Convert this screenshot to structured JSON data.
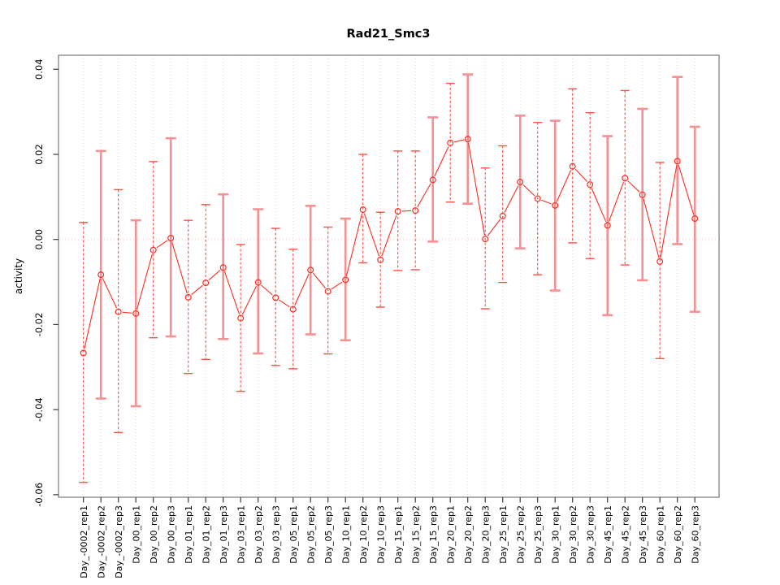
{
  "title": "Rad21_Smc3",
  "chart_data": {
    "type": "line",
    "subtype": "points-with-error-bars",
    "title": "Rad21_Smc3",
    "xlabel": "",
    "ylabel": "activity",
    "ylim": [
      -0.0606,
      0.0433
    ],
    "yticks": [
      0.04,
      0.02,
      0.0,
      -0.02,
      -0.04,
      -0.06
    ],
    "ytick_labels": [
      "0.04",
      "0.02",
      "0.00",
      "-0.02",
      "-0.04",
      "-0.06"
    ],
    "grid": "vertical dotted gridline per category; dotted horizontal line at y=0",
    "legend": "none",
    "marker": "open-circle",
    "categories": [
      "Day_-0002_rep1",
      "Day_-0002_rep2",
      "Day_-0002_rep3",
      "Day_00_rep1",
      "Day_00_rep2",
      "Day_00_rep3",
      "Day_01_rep1",
      "Day_01_rep2",
      "Day_01_rep3",
      "Day_03_rep1",
      "Day_03_rep2",
      "Day_03_rep3",
      "Day_05_rep1",
      "Day_05_rep2",
      "Day_05_rep3",
      "Day_10_rep1",
      "Day_10_rep2",
      "Day_10_rep3",
      "Day_15_rep1",
      "Day_15_rep2",
      "Day_15_rep3",
      "Day_20_rep1",
      "Day_20_rep2",
      "Day_20_rep3",
      "Day_25_rep1",
      "Day_25_rep2",
      "Day_25_rep3",
      "Day_30_rep1",
      "Day_30_rep2",
      "Day_30_rep3",
      "Day_45_rep1",
      "Day_45_rep2",
      "Day_45_rep3",
      "Day_60_rep1",
      "Day_60_rep2",
      "Day_60_rep3"
    ],
    "series": [
      {
        "name": "activity",
        "values": [
          -0.0267,
          -0.0083,
          -0.017,
          -0.0174,
          -0.0025,
          0.0003,
          -0.0136,
          -0.0102,
          -0.0066,
          -0.0185,
          -0.0101,
          -0.0137,
          -0.0164,
          -0.0072,
          -0.0122,
          -0.0095,
          0.007,
          -0.0048,
          0.0066,
          0.0068,
          0.014,
          0.0227,
          0.0236,
          0.0001,
          0.0055,
          0.0135,
          0.0096,
          0.008,
          0.0172,
          0.0129,
          0.0033,
          0.0144,
          0.0105,
          -0.0052,
          0.0184,
          0.0049
        ],
        "lower": [
          -0.0571,
          -0.0374,
          -0.0454,
          -0.0392,
          -0.0231,
          -0.0228,
          -0.0315,
          -0.0282,
          -0.0234,
          -0.0357,
          -0.0268,
          -0.0296,
          -0.0304,
          -0.0223,
          -0.0269,
          -0.0237,
          -0.0055,
          -0.0159,
          -0.0073,
          -0.0071,
          -0.0005,
          0.0088,
          0.0084,
          -0.0163,
          -0.0101,
          -0.0021,
          -0.0083,
          -0.012,
          -0.0008,
          -0.0045,
          -0.0178,
          -0.006,
          -0.0096,
          -0.028,
          -0.0011,
          -0.017
        ],
        "upper": [
          0.004,
          0.0208,
          0.0117,
          0.0045,
          0.0183,
          0.0238,
          0.0045,
          0.0082,
          0.0106,
          -0.0012,
          0.0071,
          0.0026,
          -0.0023,
          0.0079,
          0.0029,
          0.0049,
          0.02,
          0.0064,
          0.0208,
          0.0208,
          0.0287,
          0.0367,
          0.0388,
          0.0168,
          0.022,
          0.0291,
          0.0275,
          0.0279,
          0.0354,
          0.0298,
          0.0243,
          0.035,
          0.0307,
          0.0181,
          0.0382,
          0.0265
        ],
        "bar_styles": [
          "dashed",
          "solid",
          "dashed",
          "solid",
          "dashed",
          "solid",
          "dashed",
          "dashed",
          "solid",
          "dashed",
          "solid",
          "dashed",
          "dashed",
          "solid",
          "dashed",
          "solid",
          "dashed",
          "dashed",
          "dashed",
          "dashed",
          "solid",
          "dashed",
          "solid",
          "dashed",
          "dashed",
          "solid",
          "dashed",
          "solid",
          "dashed",
          "dashed",
          "solid",
          "dashed",
          "solid",
          "dashed",
          "solid",
          "solid"
        ]
      }
    ],
    "colors": {
      "point_and_line": "#fb2c21",
      "dashed_error_bar": "#ff4f47",
      "solid_error_bar": "#f59093",
      "zero_line": "#eecaca",
      "gridline": "#d8d8d8",
      "axis_box": "#8a8a8a",
      "tick": "#3a3a3a",
      "text": "#000000"
    }
  }
}
